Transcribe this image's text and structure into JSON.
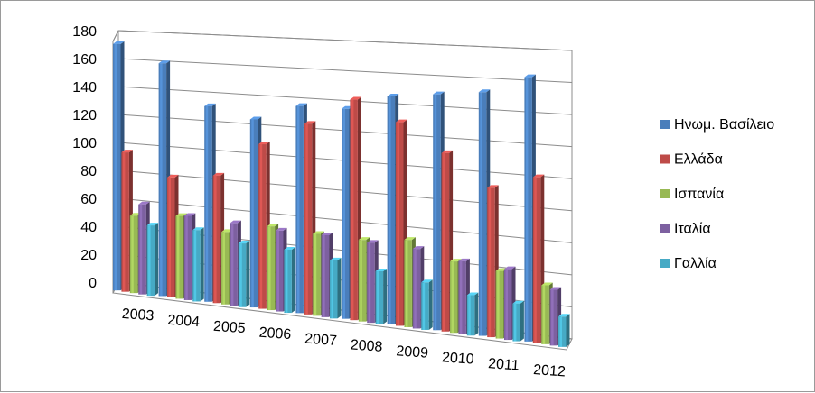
{
  "chart_data": {
    "type": "bar",
    "subtype": "3d-clustered-column",
    "categories": [
      "2003",
      "2004",
      "2005",
      "2006",
      "2007",
      "2008",
      "2009",
      "2010",
      "2011",
      "2012"
    ],
    "series": [
      {
        "name": "Ηνωμ. Βασίλειο",
        "color": "#4a7ebb",
        "values": [
          175,
          163,
          135,
          128,
          139,
          139,
          149,
          152,
          155,
          166
        ]
      },
      {
        "name": "Ελλάδα",
        "color": "#be4b48",
        "values": [
          99,
          84,
          88,
          112,
          128,
          146,
          133,
          115,
          95,
          104
        ]
      },
      {
        "name": "Ισπανία",
        "color": "#98b954",
        "values": [
          55,
          58,
          50,
          57,
          55,
          54,
          57,
          46,
          43,
          37
        ]
      },
      {
        "name": "Ιταλία",
        "color": "#7d60a0",
        "values": [
          64,
          59,
          57,
          55,
          55,
          53,
          52,
          47,
          45,
          35
        ]
      },
      {
        "name": "Γαλλία",
        "color": "#46aac5",
        "values": [
          50,
          50,
          44,
          43,
          39,
          35,
          31,
          26,
          24,
          19
        ]
      }
    ],
    "yticks": [
      0,
      20,
      40,
      60,
      80,
      100,
      120,
      140,
      160,
      180
    ],
    "ylim": [
      0,
      180
    ],
    "title": "",
    "xlabel": "",
    "ylabel": "",
    "grid": true,
    "legend_position": "right"
  }
}
